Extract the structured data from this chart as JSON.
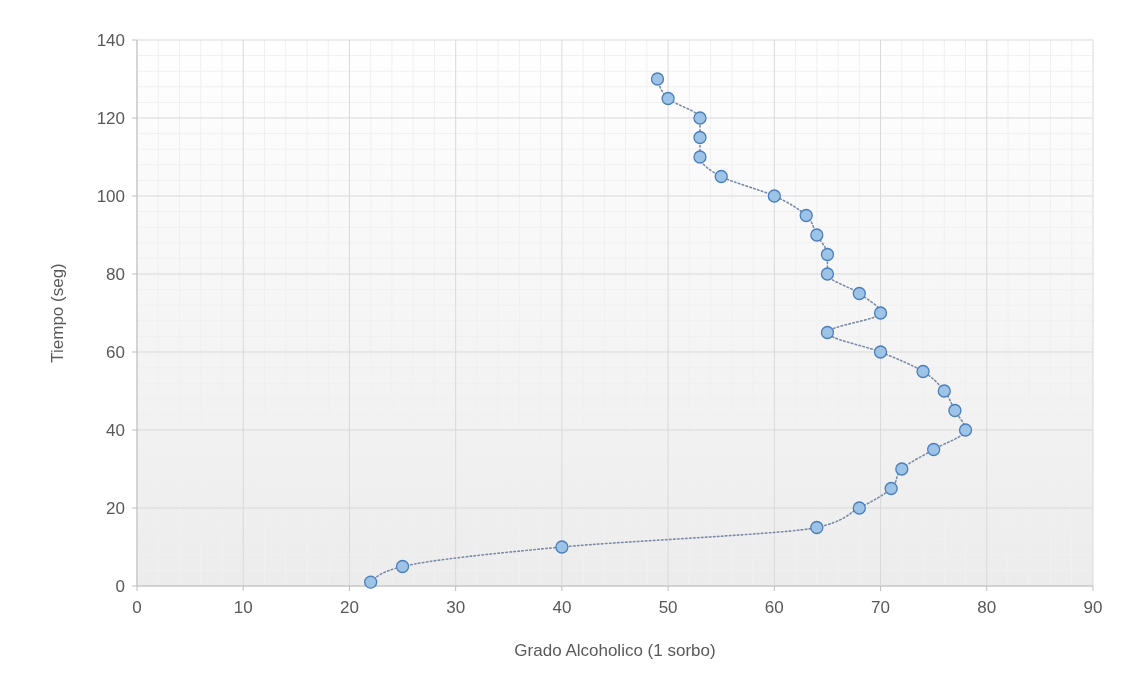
{
  "chart_data": {
    "type": "line",
    "xlabel": "Grado Alcoholico (1 sorbo)",
    "ylabel": "Tiempo (seg)",
    "x": [
      49,
      50,
      53,
      53,
      53,
      55,
      60,
      63,
      64,
      65,
      65,
      68,
      70,
      65,
      70,
      74,
      76,
      77,
      78,
      75,
      72,
      71,
      68,
      64,
      40,
      25,
      22
    ],
    "series": [
      {
        "color": "#9dc3e6",
        "values": [
          130,
          125,
          120,
          115,
          110,
          105,
          100,
          95,
          90,
          85,
          80,
          75,
          70,
          65,
          60,
          55,
          50,
          45,
          40,
          35,
          30,
          25,
          20,
          15,
          10,
          5,
          1
        ]
      }
    ],
    "xlim": [
      0,
      90
    ],
    "xticks": [
      0,
      10,
      20,
      30,
      40,
      50,
      60,
      70,
      80,
      90
    ],
    "ylim": [
      0,
      140
    ],
    "yticks": [
      0,
      20,
      40,
      60,
      80,
      100,
      120,
      140
    ],
    "grid": true,
    "marker": "circle",
    "line_style": "dotted"
  }
}
